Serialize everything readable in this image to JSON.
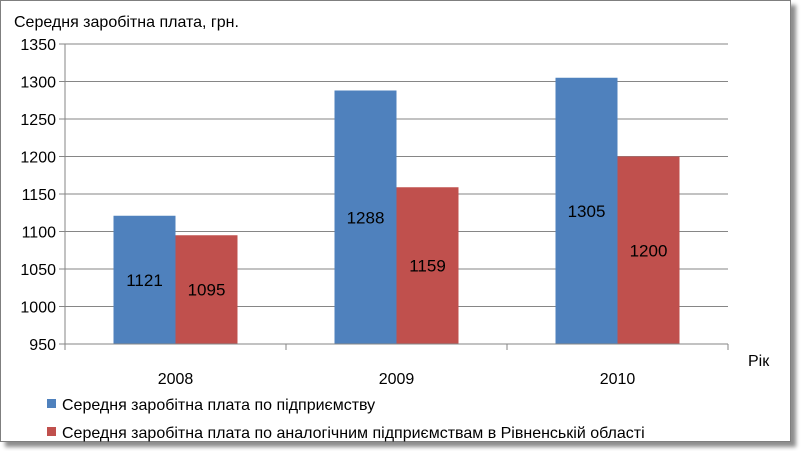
{
  "chart_data": {
    "type": "bar",
    "ylabel": "Середня заробітна плата, грн.",
    "xlabel": "Рік",
    "categories": [
      "2008",
      "2009",
      "2010"
    ],
    "series": [
      {
        "name": "Середня заробітна плата по підприємству",
        "values": [
          1121,
          1288,
          1305
        ],
        "color": "#4f81bd"
      },
      {
        "name": "Середня заробітна плата по аналогічним підприємствам в Рівненській області",
        "values": [
          1095,
          1159,
          1200
        ],
        "color": "#c0504d"
      }
    ],
    "ylim": [
      950,
      1350
    ],
    "yticks": [
      "950",
      "1000",
      "1050",
      "1100",
      "1150",
      "1200",
      "1250",
      "1300",
      "1350"
    ],
    "grid": true,
    "legend_position": "bottom"
  }
}
